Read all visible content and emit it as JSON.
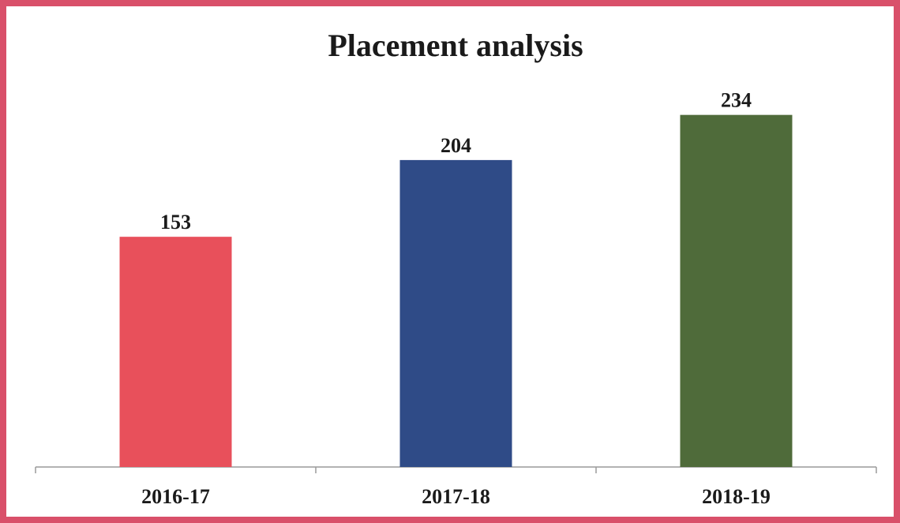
{
  "chart_data": {
    "type": "bar",
    "title": "Placement analysis",
    "categories": [
      "2016-17",
      "2017-18",
      "2018-19"
    ],
    "values": [
      153,
      204,
      234
    ],
    "colors": [
      "#e8505b",
      "#2f4b87",
      "#4f6b3a"
    ],
    "ylim": [
      0,
      270
    ]
  }
}
